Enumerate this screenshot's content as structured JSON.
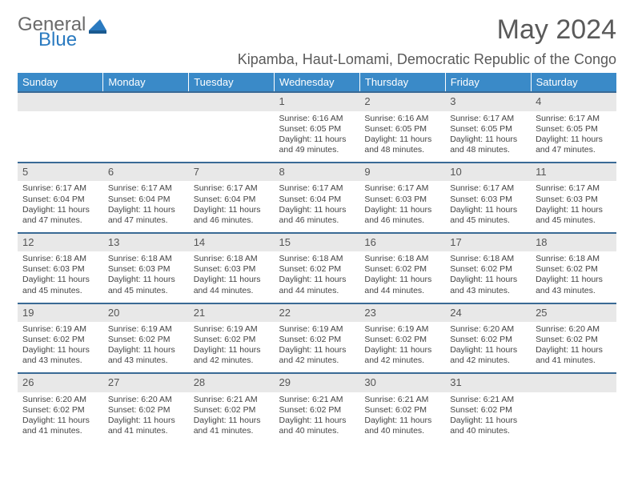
{
  "brand": {
    "line1": "General",
    "line2": "Blue",
    "color_gray": "#6a6a6a",
    "color_blue": "#2a7ac0"
  },
  "title": "May 2024",
  "location": "Kipamba, Haut-Lomami, Democratic Republic of the Congo",
  "colors": {
    "header_bg": "#3a8ac8",
    "header_text": "#ffffff",
    "daynum_bg": "#e8e8e8",
    "row_border": "#3a6a95",
    "body_text": "#444444"
  },
  "day_headers": [
    "Sunday",
    "Monday",
    "Tuesday",
    "Wednesday",
    "Thursday",
    "Friday",
    "Saturday"
  ],
  "weeks": [
    [
      null,
      null,
      null,
      {
        "n": "1",
        "sr": "6:16 AM",
        "ss": "6:05 PM",
        "dl": "11 hours and 49 minutes."
      },
      {
        "n": "2",
        "sr": "6:16 AM",
        "ss": "6:05 PM",
        "dl": "11 hours and 48 minutes."
      },
      {
        "n": "3",
        "sr": "6:17 AM",
        "ss": "6:05 PM",
        "dl": "11 hours and 48 minutes."
      },
      {
        "n": "4",
        "sr": "6:17 AM",
        "ss": "6:05 PM",
        "dl": "11 hours and 47 minutes."
      }
    ],
    [
      {
        "n": "5",
        "sr": "6:17 AM",
        "ss": "6:04 PM",
        "dl": "11 hours and 47 minutes."
      },
      {
        "n": "6",
        "sr": "6:17 AM",
        "ss": "6:04 PM",
        "dl": "11 hours and 47 minutes."
      },
      {
        "n": "7",
        "sr": "6:17 AM",
        "ss": "6:04 PM",
        "dl": "11 hours and 46 minutes."
      },
      {
        "n": "8",
        "sr": "6:17 AM",
        "ss": "6:04 PM",
        "dl": "11 hours and 46 minutes."
      },
      {
        "n": "9",
        "sr": "6:17 AM",
        "ss": "6:03 PM",
        "dl": "11 hours and 46 minutes."
      },
      {
        "n": "10",
        "sr": "6:17 AM",
        "ss": "6:03 PM",
        "dl": "11 hours and 45 minutes."
      },
      {
        "n": "11",
        "sr": "6:17 AM",
        "ss": "6:03 PM",
        "dl": "11 hours and 45 minutes."
      }
    ],
    [
      {
        "n": "12",
        "sr": "6:18 AM",
        "ss": "6:03 PM",
        "dl": "11 hours and 45 minutes."
      },
      {
        "n": "13",
        "sr": "6:18 AM",
        "ss": "6:03 PM",
        "dl": "11 hours and 45 minutes."
      },
      {
        "n": "14",
        "sr": "6:18 AM",
        "ss": "6:03 PM",
        "dl": "11 hours and 44 minutes."
      },
      {
        "n": "15",
        "sr": "6:18 AM",
        "ss": "6:02 PM",
        "dl": "11 hours and 44 minutes."
      },
      {
        "n": "16",
        "sr": "6:18 AM",
        "ss": "6:02 PM",
        "dl": "11 hours and 44 minutes."
      },
      {
        "n": "17",
        "sr": "6:18 AM",
        "ss": "6:02 PM",
        "dl": "11 hours and 43 minutes."
      },
      {
        "n": "18",
        "sr": "6:18 AM",
        "ss": "6:02 PM",
        "dl": "11 hours and 43 minutes."
      }
    ],
    [
      {
        "n": "19",
        "sr": "6:19 AM",
        "ss": "6:02 PM",
        "dl": "11 hours and 43 minutes."
      },
      {
        "n": "20",
        "sr": "6:19 AM",
        "ss": "6:02 PM",
        "dl": "11 hours and 43 minutes."
      },
      {
        "n": "21",
        "sr": "6:19 AM",
        "ss": "6:02 PM",
        "dl": "11 hours and 42 minutes."
      },
      {
        "n": "22",
        "sr": "6:19 AM",
        "ss": "6:02 PM",
        "dl": "11 hours and 42 minutes."
      },
      {
        "n": "23",
        "sr": "6:19 AM",
        "ss": "6:02 PM",
        "dl": "11 hours and 42 minutes."
      },
      {
        "n": "24",
        "sr": "6:20 AM",
        "ss": "6:02 PM",
        "dl": "11 hours and 42 minutes."
      },
      {
        "n": "25",
        "sr": "6:20 AM",
        "ss": "6:02 PM",
        "dl": "11 hours and 41 minutes."
      }
    ],
    [
      {
        "n": "26",
        "sr": "6:20 AM",
        "ss": "6:02 PM",
        "dl": "11 hours and 41 minutes."
      },
      {
        "n": "27",
        "sr": "6:20 AM",
        "ss": "6:02 PM",
        "dl": "11 hours and 41 minutes."
      },
      {
        "n": "28",
        "sr": "6:21 AM",
        "ss": "6:02 PM",
        "dl": "11 hours and 41 minutes."
      },
      {
        "n": "29",
        "sr": "6:21 AM",
        "ss": "6:02 PM",
        "dl": "11 hours and 40 minutes."
      },
      {
        "n": "30",
        "sr": "6:21 AM",
        "ss": "6:02 PM",
        "dl": "11 hours and 40 minutes."
      },
      {
        "n": "31",
        "sr": "6:21 AM",
        "ss": "6:02 PM",
        "dl": "11 hours and 40 minutes."
      },
      null
    ]
  ],
  "labels": {
    "sunrise": "Sunrise: ",
    "sunset": "Sunset: ",
    "daylight": "Daylight: "
  }
}
